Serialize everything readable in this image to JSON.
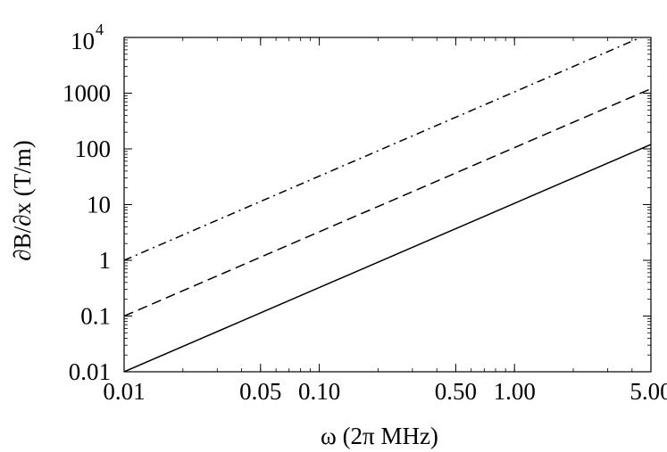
{
  "chart_data": {
    "type": "line",
    "title": "",
    "xlabel": "ω (2π MHz)",
    "ylabel": "∂B/∂x (T/m)",
    "xscale": "log",
    "yscale": "log",
    "xlim": [
      0.01,
      5.0
    ],
    "ylim": [
      0.01,
      10000
    ],
    "grid": false,
    "legend": "none",
    "x_ticks": [
      "0.01",
      "0.05",
      "0.10",
      "0.50",
      "1.00",
      "5.00"
    ],
    "x_tick_values": [
      0.01,
      0.05,
      0.1,
      0.5,
      1.0,
      5.0
    ],
    "y_ticks": [
      "0.01",
      "0.1",
      "1",
      "10",
      "100",
      "1000"
    ],
    "y_tick_values": [
      0.01,
      0.1,
      1,
      10,
      100,
      1000
    ],
    "y_top_tick": {
      "base": "10",
      "exponent": "4",
      "value": 10000
    },
    "series": [
      {
        "style": "solid",
        "x": [
          0.01,
          5.0
        ],
        "y": [
          0.01,
          120
        ]
      },
      {
        "style": "dashed",
        "x": [
          0.01,
          5.0
        ],
        "y": [
          0.1,
          1200
        ]
      },
      {
        "style": "dashdot",
        "x": [
          0.01,
          5.0
        ],
        "y": [
          1,
          12000
        ]
      }
    ]
  }
}
